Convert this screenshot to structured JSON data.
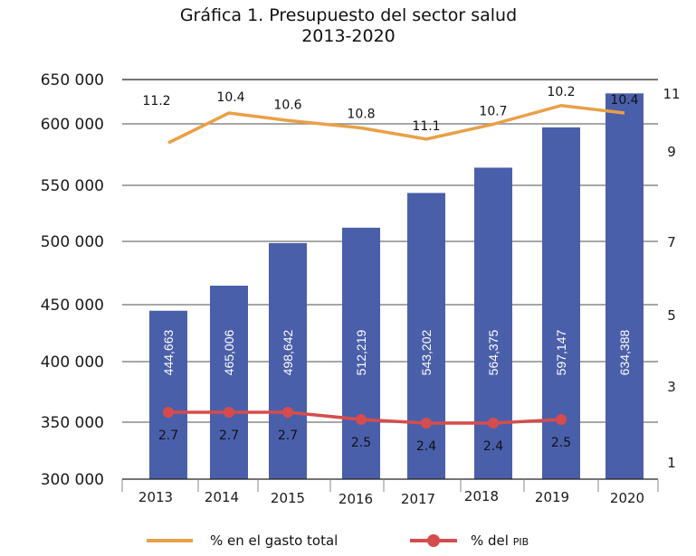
{
  "chart_data": {
    "type": "bar",
    "title": "Gráfica 1. Presupuesto del sector salud",
    "subtitle": "2013-2020",
    "categories": [
      "2013",
      "2014",
      "2015",
      "2016",
      "2017",
      "2018",
      "2019",
      "2020"
    ],
    "bar_series": {
      "name": "Presupuesto del sector salud",
      "values": [
        444663,
        465006,
        498642,
        512219,
        543202,
        564375,
        597147,
        634388
      ],
      "labels": [
        "444,663",
        "465,006",
        "498,642",
        "512,219",
        "543,202",
        "564,375",
        "597,147",
        "634,388"
      ],
      "color": "#4a5faa"
    },
    "line_series": [
      {
        "name": "% en el gasto total",
        "values": [
          11.2,
          10.4,
          10.6,
          10.8,
          11.1,
          10.7,
          10.2,
          10.4
        ],
        "labels": [
          "11.2",
          "10.4",
          "10.6",
          "10.8",
          "11.1",
          "10.7",
          "10.2",
          "10.4"
        ],
        "color": "#e9a048",
        "markers": false
      },
      {
        "name": "% del PIB",
        "values": [
          2.7,
          2.7,
          2.7,
          2.5,
          2.4,
          2.4,
          2.5,
          null
        ],
        "labels": [
          "2.7",
          "2.7",
          "2.7",
          "2.5",
          "2.4",
          "2.4",
          "2.5",
          null
        ],
        "color": "#d64c4c",
        "markers": true
      }
    ],
    "y_left": {
      "ticks": [
        300000,
        350000,
        400000,
        450000,
        500000,
        550000,
        600000,
        650000
      ],
      "tick_labels": [
        "300 000",
        "350 000",
        "400 000",
        "450 000",
        "500 000",
        "550 000",
        "600 000",
        "650 000"
      ],
      "range": [
        300000,
        650000
      ]
    },
    "y_right": {
      "ticks": [
        1,
        3,
        5,
        7,
        9,
        11
      ],
      "tick_labels": [
        "1",
        "3",
        "5",
        "7",
        "9",
        "11"
      ]
    },
    "xlabel": "",
    "ylabel": "",
    "grid": true,
    "legend": {
      "placement": "bottom",
      "entries": [
        {
          "label": "% en el gasto total",
          "color": "#e9a048",
          "marker": false
        },
        {
          "label_main": "% del ",
          "label_small": "PIB",
          "color": "#d64c4c",
          "marker": true
        }
      ]
    }
  }
}
